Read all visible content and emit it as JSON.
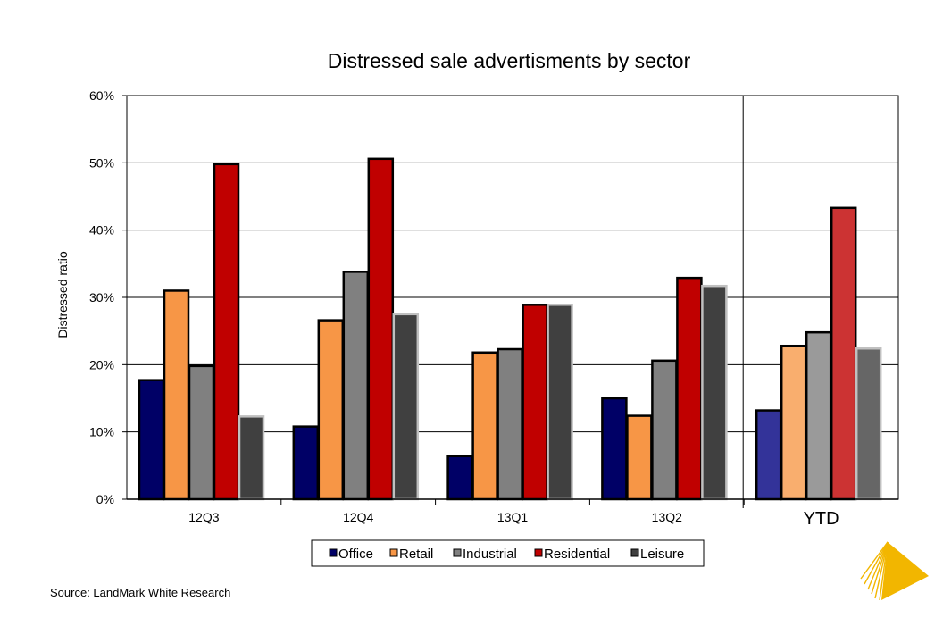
{
  "chart_data": {
    "type": "bar",
    "title": "Distressed sale advertisments by sector",
    "xlabel": "",
    "ylabel": "Distressed ratio",
    "ylim": [
      0,
      60
    ],
    "yticks": [
      "0%",
      "10%",
      "20%",
      "30%",
      "40%",
      "50%",
      "60%"
    ],
    "grid": true,
    "legend_position": "bottom-center",
    "categories": [
      "12Q3",
      "12Q4",
      "13Q1",
      "13Q2",
      "YTD"
    ],
    "series": [
      {
        "name": "Office",
        "values": [
          17.7,
          10.8,
          6.4,
          15.0,
          13.2
        ],
        "color": "#000066",
        "ytd_color": "#333399"
      },
      {
        "name": "Retail",
        "values": [
          31.0,
          26.6,
          21.8,
          12.4,
          22.8
        ],
        "color": "#F79646",
        "ytd_color": "#F9AE6E"
      },
      {
        "name": "Industrial",
        "values": [
          19.8,
          33.8,
          22.3,
          20.6,
          24.8
        ],
        "color": "#808080",
        "ytd_color": "#9A9A9A"
      },
      {
        "name": "Residential",
        "values": [
          49.8,
          50.6,
          28.9,
          32.9,
          43.3
        ],
        "color": "#C00000",
        "ytd_color": "#CC3333"
      },
      {
        "name": "Leisure",
        "values": [
          12.3,
          27.5,
          28.9,
          31.7,
          22.4
        ],
        "color": "#404040",
        "ytd_color": "#666666"
      }
    ]
  },
  "footer": {
    "source": "Source: LandMark White Research"
  }
}
